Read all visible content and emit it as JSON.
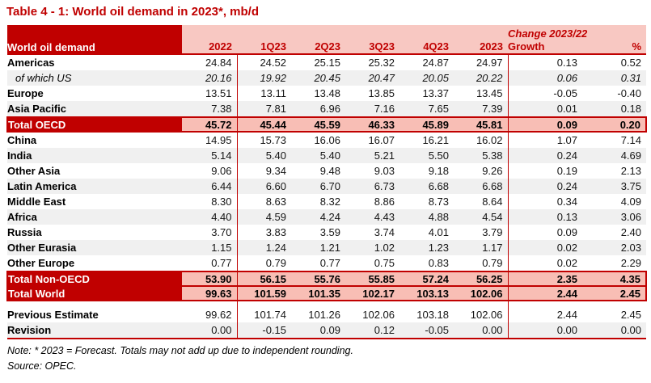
{
  "title": "Table 4 - 1: World oil demand in 2023*, mb/d",
  "header": {
    "corner": "World oil demand",
    "change_group": "Change 2023/22",
    "period_columns": [
      "2022",
      "1Q23",
      "2Q23",
      "3Q23",
      "4Q23",
      "2023"
    ],
    "change_columns": [
      "Growth",
      "%"
    ]
  },
  "rows": [
    {
      "label": "Americas",
      "type": "normal",
      "values": [
        "24.84",
        "24.52",
        "25.15",
        "25.32",
        "24.87",
        "24.97",
        "0.13",
        "0.52"
      ]
    },
    {
      "label": "of which US",
      "type": "sub",
      "values": [
        "20.16",
        "19.92",
        "20.45",
        "20.47",
        "20.05",
        "20.22",
        "0.06",
        "0.31"
      ]
    },
    {
      "label": "Europe",
      "type": "normal",
      "values": [
        "13.51",
        "13.11",
        "13.48",
        "13.85",
        "13.37",
        "13.45",
        "-0.05",
        "-0.40"
      ]
    },
    {
      "label": "Asia Pacific",
      "type": "normal",
      "values": [
        "7.38",
        "7.81",
        "6.96",
        "7.16",
        "7.65",
        "7.39",
        "0.01",
        "0.18"
      ]
    },
    {
      "label": "Total OECD",
      "type": "total",
      "values": [
        "45.72",
        "45.44",
        "45.59",
        "46.33",
        "45.89",
        "45.81",
        "0.09",
        "0.20"
      ]
    },
    {
      "label": "China",
      "type": "normal",
      "values": [
        "14.95",
        "15.73",
        "16.06",
        "16.07",
        "16.21",
        "16.02",
        "1.07",
        "7.14"
      ]
    },
    {
      "label": "India",
      "type": "normal",
      "values": [
        "5.14",
        "5.40",
        "5.40",
        "5.21",
        "5.50",
        "5.38",
        "0.24",
        "4.69"
      ]
    },
    {
      "label": "Other Asia",
      "type": "normal",
      "values": [
        "9.06",
        "9.34",
        "9.48",
        "9.03",
        "9.18",
        "9.26",
        "0.19",
        "2.13"
      ]
    },
    {
      "label": "Latin America",
      "type": "normal",
      "values": [
        "6.44",
        "6.60",
        "6.70",
        "6.73",
        "6.68",
        "6.68",
        "0.24",
        "3.75"
      ]
    },
    {
      "label": "Middle East",
      "type": "normal",
      "values": [
        "8.30",
        "8.63",
        "8.32",
        "8.86",
        "8.73",
        "8.64",
        "0.34",
        "4.09"
      ]
    },
    {
      "label": "Africa",
      "type": "normal",
      "values": [
        "4.40",
        "4.59",
        "4.24",
        "4.43",
        "4.88",
        "4.54",
        "0.13",
        "3.06"
      ]
    },
    {
      "label": "Russia",
      "type": "normal",
      "values": [
        "3.70",
        "3.83",
        "3.59",
        "3.74",
        "4.01",
        "3.79",
        "0.09",
        "2.40"
      ]
    },
    {
      "label": "Other Eurasia",
      "type": "normal",
      "values": [
        "1.15",
        "1.24",
        "1.21",
        "1.02",
        "1.23",
        "1.17",
        "0.02",
        "2.03"
      ]
    },
    {
      "label": "Other Europe",
      "type": "normal",
      "values": [
        "0.77",
        "0.79",
        "0.77",
        "0.75",
        "0.83",
        "0.79",
        "0.02",
        "2.29"
      ]
    },
    {
      "label": "Total Non-OECD",
      "type": "total",
      "values": [
        "53.90",
        "56.15",
        "55.76",
        "55.85",
        "57.24",
        "56.25",
        "2.35",
        "4.35"
      ]
    },
    {
      "label": "Total World",
      "type": "total",
      "values": [
        "99.63",
        "101.59",
        "101.35",
        "102.17",
        "103.13",
        "102.06",
        "2.44",
        "2.45"
      ]
    }
  ],
  "footer_rows": [
    {
      "label": "Previous Estimate",
      "values": [
        "99.62",
        "101.74",
        "101.26",
        "102.06",
        "103.18",
        "102.06",
        "2.44",
        "2.45"
      ]
    },
    {
      "label": "Revision",
      "values": [
        "0.00",
        "-0.15",
        "0.09",
        "0.12",
        "-0.05",
        "0.00",
        "0.00",
        "0.00"
      ]
    }
  ],
  "notes": {
    "note": "Note: * 2023 = Forecast. Totals may not add up due to independent rounding.",
    "source": "Source: OPEC."
  },
  "colors": {
    "accent_dark_red": "#C00000",
    "header_pink": "#F8C8C2",
    "total_pink": "#F8BEB5",
    "band_gray": "#F0F0F0"
  }
}
